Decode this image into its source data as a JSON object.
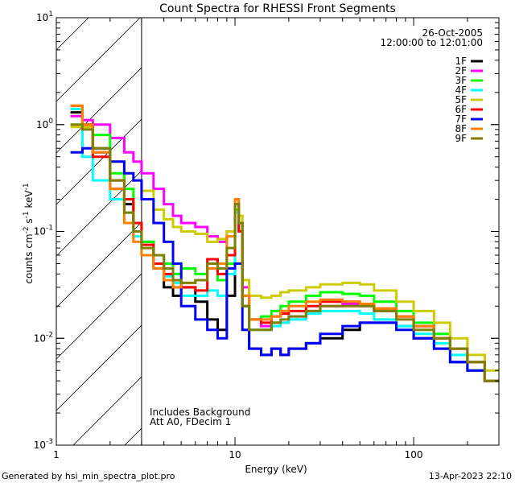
{
  "chart_data": {
    "type": "line",
    "title": "Count Spectra for RHESSI Front Segments",
    "xlabel": "Energy (keV)",
    "ylabel": "counts cm-2 s-1 keV-1",
    "ylabel_parts": {
      "base": "counts cm",
      "e1": "-2",
      "s": " s",
      "e2": "-1",
      "k": " keV",
      "e3": "-1"
    },
    "xscale": "log",
    "yscale": "log",
    "xlim": [
      1,
      300
    ],
    "ylim": [
      0.001,
      10
    ],
    "x_tick_labels": [
      "1",
      "10",
      "100"
    ],
    "y_tick_labels": [
      {
        "base": "10",
        "exp": "-3",
        "value": 0.001
      },
      {
        "base": "10",
        "exp": "-2",
        "value": 0.01
      },
      {
        "base": "10",
        "exp": "-1",
        "value": 0.1
      },
      {
        "base": "10",
        "exp": "0",
        "value": 1
      },
      {
        "base": "10",
        "exp": "1",
        "value": 10
      }
    ],
    "shaded_region_keV": [
      1,
      3
    ],
    "legend_placement": "top-right",
    "legend_header": [
      "26-Oct-2005",
      "12:00:00 to 12:01:00"
    ],
    "annotations": [
      "Includes Background",
      "Att A0, FDecim 1"
    ],
    "energy_edges": [
      1.2,
      1.4,
      1.6,
      2.0,
      2.4,
      2.7,
      3,
      3.5,
      4,
      4.5,
      5,
      6,
      7,
      8,
      9,
      10,
      10.5,
      11,
      12,
      14,
      16,
      18,
      20,
      25,
      30,
      40,
      50,
      60,
      80,
      100,
      130,
      160,
      200,
      250,
      300
    ],
    "series": [
      {
        "name": "1F",
        "color": "#000000",
        "values": [
          1.3,
          1.0,
          0.6,
          0.25,
          0.18,
          0.12,
          0.08,
          0.045,
          0.03,
          0.025,
          0.03,
          0.022,
          0.015,
          0.012,
          0.025,
          0.15,
          0.1,
          0.02,
          0.008,
          0.007,
          0.008,
          0.007,
          0.008,
          0.009,
          0.01,
          0.012,
          0.014,
          0.014,
          0.013,
          0.01,
          0.008,
          0.006,
          0.005,
          0.004
        ]
      },
      {
        "name": "2F",
        "color": "#ff00ff",
        "values": [
          1.2,
          1.1,
          1.0,
          0.75,
          0.55,
          0.45,
          0.35,
          0.25,
          0.18,
          0.14,
          0.12,
          0.11,
          0.09,
          0.08,
          0.1,
          0.2,
          0.12,
          0.03,
          0.015,
          0.013,
          0.014,
          0.014,
          0.016,
          0.018,
          0.02,
          0.021,
          0.02,
          0.018,
          0.016,
          0.013,
          0.01,
          0.008,
          0.006,
          0.004
        ]
      },
      {
        "name": "3F",
        "color": "#00ff00",
        "values": [
          1.4,
          1.0,
          0.8,
          0.35,
          0.25,
          0.12,
          0.08,
          0.06,
          0.05,
          0.04,
          0.045,
          0.04,
          0.045,
          0.035,
          0.05,
          0.16,
          0.1,
          0.025,
          0.015,
          0.016,
          0.018,
          0.02,
          0.022,
          0.025,
          0.027,
          0.026,
          0.025,
          0.022,
          0.018,
          0.014,
          0.011,
          0.008,
          0.006,
          0.004
        ]
      },
      {
        "name": "4F",
        "color": "#00ffff",
        "values": [
          1.4,
          0.5,
          0.3,
          0.2,
          0.15,
          0.09,
          0.06,
          0.045,
          0.038,
          0.033,
          0.025,
          0.025,
          0.028,
          0.025,
          0.04,
          0.15,
          0.1,
          0.02,
          0.012,
          0.012,
          0.013,
          0.014,
          0.015,
          0.017,
          0.018,
          0.018,
          0.017,
          0.015,
          0.013,
          0.011,
          0.009,
          0.007,
          0.005,
          0.004
        ]
      },
      {
        "name": "5F",
        "color": "#cccc00",
        "values": [
          0.95,
          0.95,
          0.55,
          0.45,
          0.35,
          0.3,
          0.24,
          0.16,
          0.13,
          0.11,
          0.1,
          0.095,
          0.08,
          0.085,
          0.1,
          0.2,
          0.14,
          0.035,
          0.025,
          0.024,
          0.025,
          0.027,
          0.028,
          0.03,
          0.032,
          0.033,
          0.032,
          0.028,
          0.022,
          0.018,
          0.014,
          0.01,
          0.007,
          0.005
        ]
      },
      {
        "name": "6F",
        "color": "#ff0000",
        "values": [
          1.5,
          1.0,
          0.5,
          0.3,
          0.2,
          0.12,
          0.075,
          0.05,
          0.04,
          0.03,
          0.03,
          0.028,
          0.055,
          0.04,
          0.06,
          0.18,
          0.1,
          0.025,
          0.015,
          0.014,
          0.016,
          0.017,
          0.018,
          0.02,
          0.022,
          0.022,
          0.021,
          0.019,
          0.016,
          0.013,
          0.01,
          0.008,
          0.006,
          0.004
        ]
      },
      {
        "name": "7F",
        "color": "#0000ff",
        "values": [
          0.55,
          0.6,
          0.55,
          0.45,
          0.35,
          0.3,
          0.2,
          0.12,
          0.08,
          0.05,
          0.02,
          0.015,
          0.012,
          0.01,
          0.045,
          0.05,
          0.05,
          0.012,
          0.008,
          0.007,
          0.008,
          0.007,
          0.008,
          0.009,
          0.011,
          0.013,
          0.014,
          0.014,
          0.012,
          0.01,
          0.008,
          0.006,
          0.005,
          0.004
        ]
      },
      {
        "name": "8F",
        "color": "#ff8000",
        "values": [
          1.5,
          1.0,
          0.55,
          0.25,
          0.12,
          0.08,
          0.06,
          0.045,
          0.035,
          0.03,
          0.033,
          0.035,
          0.045,
          0.05,
          0.09,
          0.2,
          0.12,
          0.025,
          0.015,
          0.015,
          0.016,
          0.018,
          0.02,
          0.022,
          0.023,
          0.022,
          0.021,
          0.019,
          0.016,
          0.013,
          0.01,
          0.008,
          0.006,
          0.004
        ]
      },
      {
        "name": "9F",
        "color": "#808000",
        "values": [
          1.0,
          0.9,
          0.6,
          0.3,
          0.15,
          0.1,
          0.07,
          0.06,
          0.045,
          0.035,
          0.033,
          0.035,
          0.05,
          0.045,
          0.07,
          0.18,
          0.12,
          0.02,
          0.012,
          0.012,
          0.014,
          0.015,
          0.016,
          0.018,
          0.02,
          0.02,
          0.02,
          0.018,
          0.015,
          0.012,
          0.01,
          0.008,
          0.006,
          0.004
        ]
      }
    ]
  },
  "footer": {
    "left": "Generated by hsi_min_spectra_plot.pro",
    "right": "13-Apr-2023 22:10"
  }
}
